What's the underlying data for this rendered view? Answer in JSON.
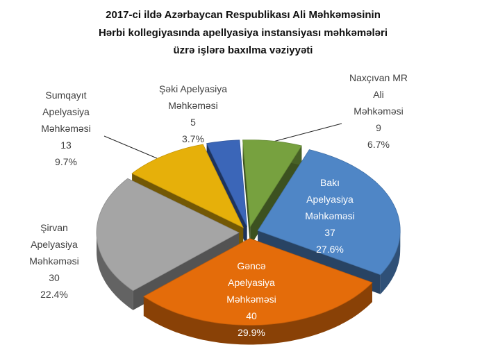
{
  "chart_data": {
    "type": "pie3d",
    "title": [
      "2017-ci ildə Azərbaycan Respublikası Ali Məhkəməsinin",
      "Hərbi  kollegiyasında  apellyasiya instansiyası məhkəmələri",
      "üzrə işlərə baxılma vəziyyəti"
    ],
    "categories": [
      [
        "Naxçıvan MR",
        "Ali",
        "Məhkəməsi"
      ],
      [
        "Bakı",
        "Apelyasiya",
        "Məhkəməsi"
      ],
      [
        "Gəncə",
        "Apelyasiya",
        "Məhkəməsi"
      ],
      [
        "Şirvan",
        "Apelyasiya",
        "Məhkəməsi"
      ],
      [
        "Sumqayıt",
        "Apelyasiya",
        "Məhkəməsi"
      ],
      [
        "Şəki  Apelyasiya",
        "Məhkəməsi"
      ]
    ],
    "values": [
      9,
      37,
      40,
      30,
      13,
      5
    ],
    "percent_labels": [
      "6.7%",
      "27.6%",
      "29.9%",
      "22.4%",
      "9.7%",
      "3.7%"
    ],
    "colors": [
      "#77a13f",
      "#4f86c6",
      "#e46c0a",
      "#a5a5a5",
      "#e6b00a",
      "#3b66b8"
    ]
  }
}
